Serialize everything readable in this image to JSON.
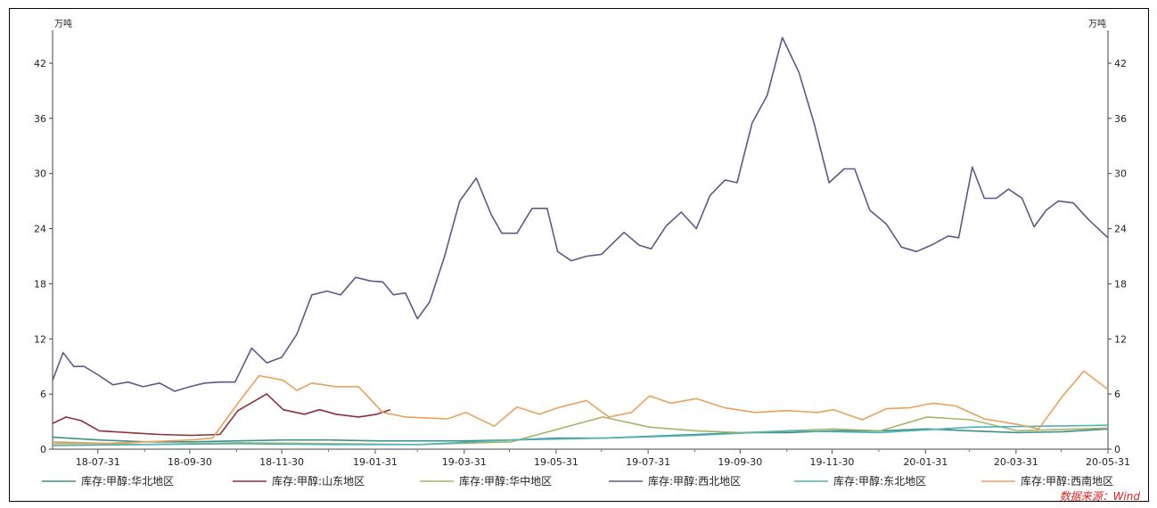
{
  "chart_data": {
    "type": "line",
    "y_unit_left": "万吨",
    "y_unit_right": "万吨",
    "ylim": [
      0,
      45
    ],
    "yticks": [
      0,
      6,
      12,
      18,
      24,
      30,
      36,
      42
    ],
    "xlim": [
      "2018-07-01",
      "2020-05-31"
    ],
    "xticks": [
      "18-07-31",
      "18-09-30",
      "18-11-30",
      "19-01-31",
      "19-03-31",
      "19-05-31",
      "19-07-31",
      "19-09-30",
      "19-11-30",
      "20-01-31",
      "20-03-31",
      "20-05-31"
    ],
    "grid": false,
    "legend_position": "bottom",
    "source": "数据来源：Wind",
    "series": [
      {
        "name": "库存:甲醇:华北地区",
        "color": "#3f8f8c",
        "points": [
          [
            "2018-07-01",
            1.3
          ],
          [
            "2018-08-01",
            1.0
          ],
          [
            "2018-09-01",
            0.8
          ],
          [
            "2018-10-01",
            0.8
          ],
          [
            "2018-11-01",
            0.9
          ],
          [
            "2018-12-01",
            1.0
          ],
          [
            "2019-01-01",
            1.0
          ],
          [
            "2019-02-01",
            0.9
          ],
          [
            "2019-03-01",
            0.9
          ],
          [
            "2019-04-01",
            0.9
          ],
          [
            "2019-05-01",
            1.0
          ],
          [
            "2019-06-01",
            1.2
          ],
          [
            "2019-07-01",
            1.2
          ],
          [
            "2019-08-01",
            1.4
          ],
          [
            "2019-09-01",
            1.6
          ],
          [
            "2019-10-01",
            1.8
          ],
          [
            "2019-11-01",
            1.8
          ],
          [
            "2019-12-01",
            2.0
          ],
          [
            "2020-01-01",
            2.0
          ],
          [
            "2020-02-01",
            2.2
          ],
          [
            "2020-03-01",
            2.0
          ],
          [
            "2020-04-01",
            1.8
          ],
          [
            "2020-05-01",
            1.9
          ],
          [
            "2020-05-31",
            2.2
          ]
        ]
      },
      {
        "name": "库存:甲醇:山东地区",
        "color": "#8e2e3f",
        "points": [
          [
            "2018-07-01",
            2.8
          ],
          [
            "2018-07-10",
            3.5
          ],
          [
            "2018-07-20",
            3.1
          ],
          [
            "2018-08-01",
            2.0
          ],
          [
            "2018-08-20",
            1.8
          ],
          [
            "2018-09-10",
            1.6
          ],
          [
            "2018-10-01",
            1.5
          ],
          [
            "2018-10-20",
            1.6
          ],
          [
            "2018-11-01",
            4.2
          ],
          [
            "2018-11-20",
            6.0
          ],
          [
            "2018-12-01",
            4.3
          ],
          [
            "2018-12-15",
            3.8
          ],
          [
            "2018-12-25",
            4.3
          ],
          [
            "2019-01-05",
            3.8
          ],
          [
            "2019-01-20",
            3.5
          ],
          [
            "2019-02-01",
            3.8
          ],
          [
            "2019-02-10",
            4.3
          ]
        ]
      },
      {
        "name": "库存:甲醇:华中地区",
        "color": "#a8b36a",
        "points": [
          [
            "2018-07-01",
            0.8
          ],
          [
            "2018-09-01",
            0.5
          ],
          [
            "2018-11-01",
            0.7
          ],
          [
            "2019-01-01",
            0.6
          ],
          [
            "2019-03-01",
            0.5
          ],
          [
            "2019-05-01",
            0.8
          ],
          [
            "2019-07-01",
            3.5
          ],
          [
            "2019-08-01",
            2.4
          ],
          [
            "2019-09-01",
            2.0
          ],
          [
            "2019-10-01",
            1.8
          ],
          [
            "2019-11-01",
            2.0
          ],
          [
            "2019-12-01",
            2.2
          ],
          [
            "2020-01-01",
            2.0
          ],
          [
            "2020-02-01",
            3.5
          ],
          [
            "2020-03-01",
            3.2
          ],
          [
            "2020-04-01",
            2.0
          ],
          [
            "2020-05-31",
            2.3
          ]
        ]
      },
      {
        "name": "库存:甲醇:西北地区",
        "color": "#5a5a8c",
        "points": [
          [
            "2018-07-01",
            7.5
          ],
          [
            "2018-07-08",
            10.5
          ],
          [
            "2018-07-15",
            9.0
          ],
          [
            "2018-07-22",
            9.0
          ],
          [
            "2018-08-01",
            8.0
          ],
          [
            "2018-08-10",
            7.0
          ],
          [
            "2018-08-20",
            7.3
          ],
          [
            "2018-08-30",
            6.8
          ],
          [
            "2018-09-10",
            7.2
          ],
          [
            "2018-09-20",
            6.3
          ],
          [
            "2018-09-30",
            6.8
          ],
          [
            "2018-10-10",
            7.2
          ],
          [
            "2018-10-20",
            7.3
          ],
          [
            "2018-10-30",
            7.3
          ],
          [
            "2018-11-10",
            11.0
          ],
          [
            "2018-11-20",
            9.4
          ],
          [
            "2018-11-30",
            10.0
          ],
          [
            "2018-12-10",
            12.5
          ],
          [
            "2018-12-20",
            16.8
          ],
          [
            "2018-12-30",
            17.2
          ],
          [
            "2019-01-08",
            16.8
          ],
          [
            "2019-01-18",
            18.7
          ],
          [
            "2019-01-28",
            18.3
          ],
          [
            "2019-02-05",
            18.2
          ],
          [
            "2019-02-12",
            16.8
          ],
          [
            "2019-02-20",
            17.0
          ],
          [
            "2019-02-28",
            14.2
          ],
          [
            "2019-03-08",
            16.0
          ],
          [
            "2019-03-18",
            21.0
          ],
          [
            "2019-03-28",
            27.0
          ],
          [
            "2019-04-08",
            29.5
          ],
          [
            "2019-04-18",
            25.5
          ],
          [
            "2019-04-25",
            23.5
          ],
          [
            "2019-05-05",
            23.5
          ],
          [
            "2019-05-15",
            26.2
          ],
          [
            "2019-05-25",
            26.2
          ],
          [
            "2019-06-01",
            21.5
          ],
          [
            "2019-06-10",
            20.5
          ],
          [
            "2019-06-20",
            21.0
          ],
          [
            "2019-06-30",
            21.2
          ],
          [
            "2019-07-15",
            23.6
          ],
          [
            "2019-07-25",
            22.2
          ],
          [
            "2019-08-02",
            21.8
          ],
          [
            "2019-08-12",
            24.3
          ],
          [
            "2019-08-22",
            25.8
          ],
          [
            "2019-09-01",
            24.0
          ],
          [
            "2019-09-10",
            27.6
          ],
          [
            "2019-09-20",
            29.3
          ],
          [
            "2019-09-28",
            29.0
          ],
          [
            "2019-10-08",
            35.5
          ],
          [
            "2019-10-18",
            38.5
          ],
          [
            "2019-10-28",
            44.8
          ],
          [
            "2019-11-08",
            41.0
          ],
          [
            "2019-11-18",
            35.5
          ],
          [
            "2019-11-28",
            29.0
          ],
          [
            "2019-12-08",
            30.5
          ],
          [
            "2019-12-15",
            30.5
          ],
          [
            "2019-12-25",
            26.0
          ],
          [
            "2020-01-05",
            24.5
          ],
          [
            "2020-01-15",
            22.0
          ],
          [
            "2020-01-25",
            21.5
          ],
          [
            "2020-02-05",
            22.3
          ],
          [
            "2020-02-15",
            23.2
          ],
          [
            "2020-02-22",
            23.0
          ],
          [
            "2020-03-02",
            30.7
          ],
          [
            "2020-03-10",
            27.3
          ],
          [
            "2020-03-18",
            27.3
          ],
          [
            "2020-03-26",
            28.3
          ],
          [
            "2020-04-04",
            27.3
          ],
          [
            "2020-04-12",
            24.2
          ],
          [
            "2020-04-20",
            26.0
          ],
          [
            "2020-04-28",
            27.0
          ],
          [
            "2020-05-08",
            26.8
          ],
          [
            "2020-05-18",
            25.0
          ],
          [
            "2020-05-31",
            23.0
          ]
        ]
      },
      {
        "name": "库存:甲醇:东北地区",
        "color": "#4fb3b7",
        "points": [
          [
            "2018-07-01",
            0.4
          ],
          [
            "2018-09-01",
            0.5
          ],
          [
            "2018-11-01",
            0.6
          ],
          [
            "2019-01-01",
            0.5
          ],
          [
            "2019-03-01",
            0.5
          ],
          [
            "2019-05-01",
            1.0
          ],
          [
            "2019-07-01",
            1.2
          ],
          [
            "2019-09-01",
            1.5
          ],
          [
            "2019-11-01",
            2.0
          ],
          [
            "2020-01-01",
            1.8
          ],
          [
            "2020-03-01",
            2.4
          ],
          [
            "2020-05-31",
            2.6
          ]
        ]
      },
      {
        "name": "库存:甲醇:西南地区",
        "color": "#e8a15a",
        "points": [
          [
            "2018-07-01",
            0.6
          ],
          [
            "2018-08-01",
            0.6
          ],
          [
            "2018-09-01",
            0.8
          ],
          [
            "2018-10-01",
            1.0
          ],
          [
            "2018-10-15",
            1.2
          ],
          [
            "2018-11-01",
            5.0
          ],
          [
            "2018-11-15",
            8.0
          ],
          [
            "2018-12-01",
            7.5
          ],
          [
            "2018-12-10",
            6.4
          ],
          [
            "2018-12-20",
            7.2
          ],
          [
            "2019-01-05",
            6.8
          ],
          [
            "2019-01-20",
            6.8
          ],
          [
            "2019-02-05",
            4.0
          ],
          [
            "2019-02-20",
            3.5
          ],
          [
            "2019-03-05",
            3.4
          ],
          [
            "2019-03-20",
            3.3
          ],
          [
            "2019-04-01",
            4.0
          ],
          [
            "2019-04-20",
            2.5
          ],
          [
            "2019-05-05",
            4.6
          ],
          [
            "2019-05-20",
            3.8
          ],
          [
            "2019-06-01",
            4.5
          ],
          [
            "2019-06-20",
            5.3
          ],
          [
            "2019-07-05",
            3.5
          ],
          [
            "2019-07-20",
            4.0
          ],
          [
            "2019-08-01",
            5.8
          ],
          [
            "2019-08-15",
            5.0
          ],
          [
            "2019-09-01",
            5.5
          ],
          [
            "2019-09-20",
            4.5
          ],
          [
            "2019-10-10",
            4.0
          ],
          [
            "2019-11-01",
            4.2
          ],
          [
            "2019-11-20",
            4.0
          ],
          [
            "2019-12-01",
            4.3
          ],
          [
            "2019-12-20",
            3.2
          ],
          [
            "2020-01-05",
            4.4
          ],
          [
            "2020-01-20",
            4.5
          ],
          [
            "2020-02-05",
            5.0
          ],
          [
            "2020-02-20",
            4.7
          ],
          [
            "2020-03-10",
            3.3
          ],
          [
            "2020-04-01",
            2.7
          ],
          [
            "2020-04-15",
            2.2
          ],
          [
            "2020-05-01",
            5.8
          ],
          [
            "2020-05-15",
            8.5
          ],
          [
            "2020-05-31",
            6.5
          ]
        ]
      }
    ]
  }
}
